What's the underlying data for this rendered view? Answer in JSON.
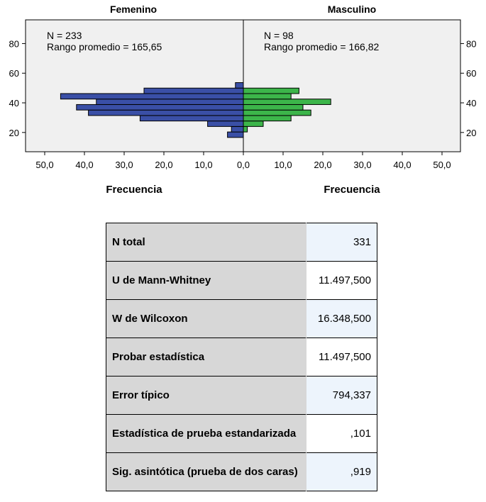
{
  "chart_data": {
    "type": "bar",
    "orientation": "horizontal-population-pyramid",
    "xlabel": "Frecuencia",
    "xlim": [
      0,
      50
    ],
    "x_ticks": [
      "50,0",
      "40,0",
      "30,0",
      "20,0",
      "10,0",
      "0,0",
      "10,0",
      "20,0",
      "30,0",
      "40,0",
      "50,0"
    ],
    "y_ticks": [
      "20",
      "40",
      "60",
      "80"
    ],
    "ylim": [
      7,
      96
    ],
    "bin_width": 3.7,
    "series": [
      {
        "name": "Femenino",
        "color": "#3a4fa6",
        "side": "left",
        "stats": [
          "N = 233",
          "Rango promedio = 165,65"
        ],
        "bins": [
          {
            "y": 18.5,
            "value": 4
          },
          {
            "y": 22.2,
            "value": 3
          },
          {
            "y": 25.9,
            "value": 9
          },
          {
            "y": 29.6,
            "value": 26
          },
          {
            "y": 33.3,
            "value": 39
          },
          {
            "y": 37.0,
            "value": 42
          },
          {
            "y": 40.7,
            "value": 37
          },
          {
            "y": 44.4,
            "value": 46
          },
          {
            "y": 48.1,
            "value": 25
          },
          {
            "y": 51.8,
            "value": 2
          }
        ]
      },
      {
        "name": "Masculino",
        "color": "#3cb54a",
        "side": "right",
        "stats": [
          "N = 98",
          "Rango promedio = 166,82"
        ],
        "bins": [
          {
            "y": 22.2,
            "value": 1
          },
          {
            "y": 25.9,
            "value": 5
          },
          {
            "y": 29.6,
            "value": 12
          },
          {
            "y": 33.3,
            "value": 17
          },
          {
            "y": 37.0,
            "value": 15
          },
          {
            "y": 40.7,
            "value": 22
          },
          {
            "y": 44.4,
            "value": 12
          },
          {
            "y": 48.1,
            "value": 14
          }
        ]
      }
    ]
  },
  "stats_table": [
    {
      "label": "N total",
      "value": "331"
    },
    {
      "label": "U de Mann-Whitney",
      "value": "11.497,500"
    },
    {
      "label": "W de Wilcoxon",
      "value": "16.348,500"
    },
    {
      "label": "Probar estadística",
      "value": "11.497,500"
    },
    {
      "label": "Error típico",
      "value": "794,337"
    },
    {
      "label": "Estadística de prueba estandarizada",
      "value": ",101"
    },
    {
      "label": "Sig. asintótica (prueba de dos caras)",
      "value": ",919"
    }
  ]
}
